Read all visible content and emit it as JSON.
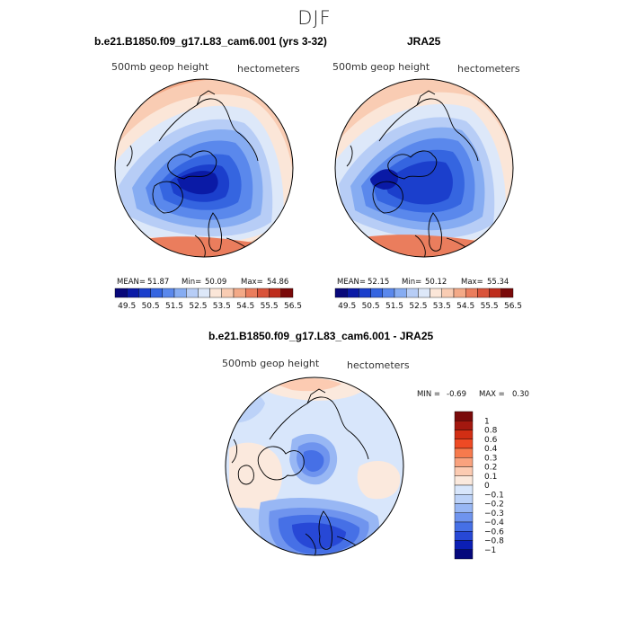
{
  "chart_data": [
    {
      "type": "heatmap",
      "projection": "north-polar-stereographic",
      "title": "b.e21.B1850.f09_g17.L83_cam6.001 (yrs 3-32)",
      "variable_label": "500mb geop height",
      "units_label": "hectometers",
      "stats": {
        "mean_label": "MEAN=",
        "mean": "51.87",
        "min_label": "Min=",
        "min": "50.09",
        "max_label": "Max=",
        "max": "54.86"
      },
      "colorbar_ticks": [
        "49.5",
        "50.5",
        "51.5",
        "52.5",
        "53.5",
        "54.5",
        "55.5",
        "56.5"
      ]
    },
    {
      "type": "heatmap",
      "projection": "north-polar-stereographic",
      "title": "JRA25",
      "variable_label": "500mb geop height",
      "units_label": "hectometers",
      "stats": {
        "mean_label": "MEAN=",
        "mean": "52.15",
        "min_label": "Min=",
        "min": "50.12",
        "max_label": "Max=",
        "max": "55.34"
      },
      "colorbar_ticks": [
        "49.5",
        "50.5",
        "51.5",
        "52.5",
        "53.5",
        "54.5",
        "55.5",
        "56.5"
      ]
    },
    {
      "type": "heatmap",
      "projection": "north-polar-stereographic",
      "title": "b.e21.B1850.f09_g17.L83_cam6.001 - JRA25",
      "variable_label": "500mb geop height",
      "units_label": "hectometers",
      "stats": {
        "min_label": "MIN =",
        "min": "-0.69",
        "max_label": "MAX =",
        "max": "0.30"
      },
      "colorbar_ticks": [
        "1",
        "0.8",
        "0.6",
        "0.4",
        "0.3",
        "0.2",
        "0.1",
        "0",
        "−0.1",
        "−0.2",
        "−0.3",
        "−0.4",
        "−0.6",
        "−0.8",
        "−1"
      ]
    }
  ],
  "page_title": "DJF",
  "colors": {
    "abs_scale": [
      "#08087a",
      "#0a1aa6",
      "#1b3fcc",
      "#3565e0",
      "#5a88ec",
      "#86acf2",
      "#b7cdf6",
      "#dde8f9",
      "#fbe6d8",
      "#f9ccb3",
      "#f3a987",
      "#ea7d5d",
      "#d9533a",
      "#be2d1d",
      "#7a0a0a"
    ],
    "diff_scale": [
      "#7a0a0a",
      "#a3180f",
      "#d12e14",
      "#ee4a24",
      "#f77a4d",
      "#f9a27e",
      "#fccbb2",
      "#fbe9dd",
      "#d8e6fb",
      "#bcd2f8",
      "#98b7f4",
      "#6f94ee",
      "#4670e6",
      "#2748d6",
      "#0b1fb5",
      "#05087c"
    ]
  }
}
